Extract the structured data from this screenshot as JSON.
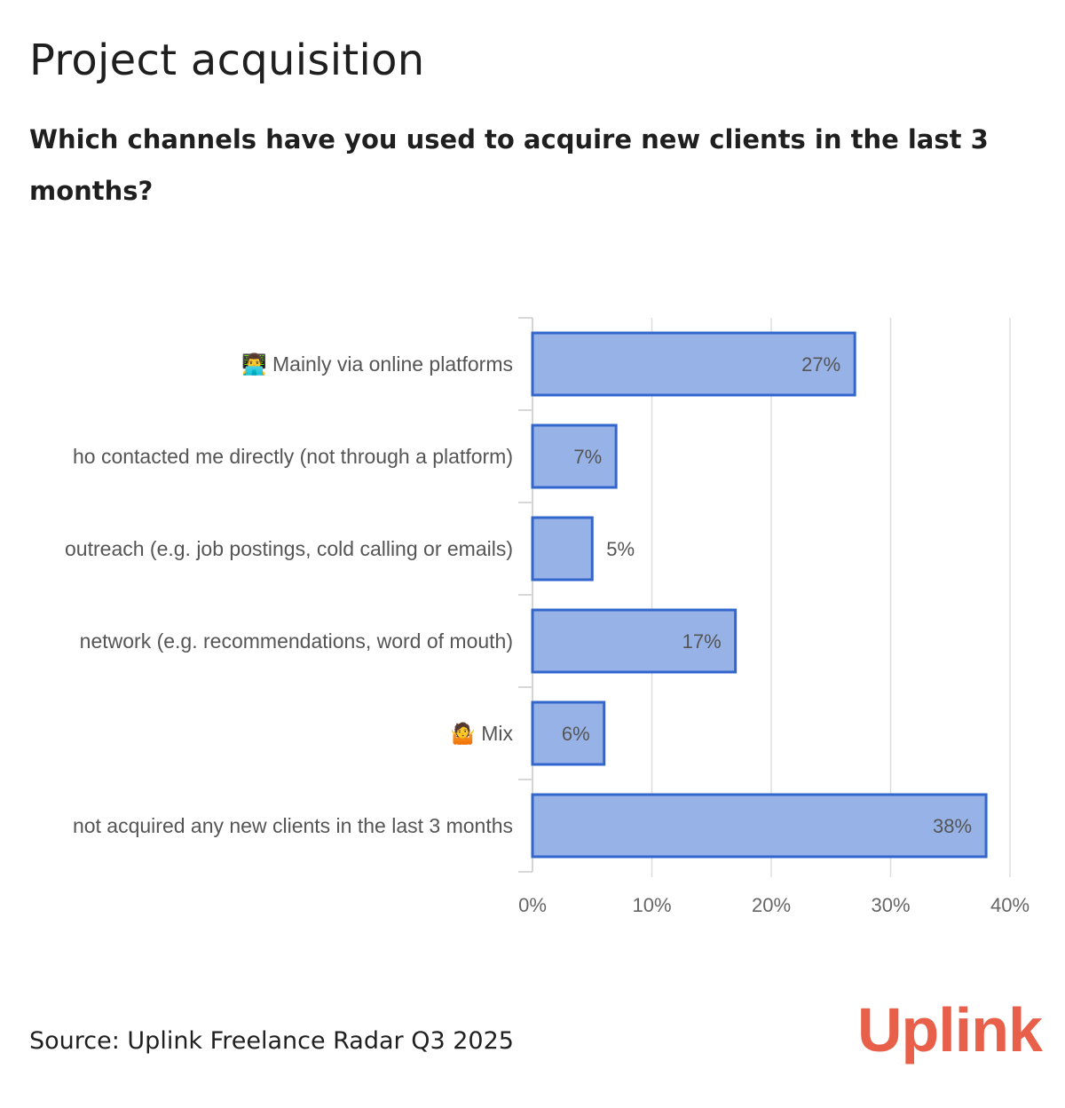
{
  "title": "Project acquisition",
  "subtitle": "Which channels have you used to acquire new clients in the last 3 months?",
  "source": "Source: Uplink Freelance Radar Q3 2025",
  "logo_text": "Uplink",
  "colors": {
    "bar_fill": "#97b2e6",
    "bar_stroke": "#3366cc",
    "grid": "#dddddd",
    "brand": "#e8604a"
  },
  "chart_data": {
    "type": "bar",
    "orientation": "horizontal",
    "title": "Project acquisition",
    "subtitle": "Which channels have you used to acquire new clients in the last 3 months?",
    "categories": [
      "👨‍💻 Mainly via online platforms",
      "ho contacted me directly (not through a platform)",
      "outreach (e.g. job postings, cold calling or emails)",
      "network (e.g. recommendations, word of mouth)",
      "🤷 Mix",
      "not acquired any new clients in the last 3 months"
    ],
    "values": [
      27,
      7,
      5,
      17,
      6,
      38
    ],
    "value_labels": [
      "27%",
      "7%",
      "5%",
      "17%",
      "6%",
      "38%"
    ],
    "xlim": [
      0,
      40
    ],
    "ticks": [
      0,
      10,
      20,
      30,
      40
    ],
    "tick_labels": [
      "0%",
      "10%",
      "20%",
      "30%",
      "40%"
    ],
    "xlabel": "",
    "ylabel": "",
    "grid": true,
    "legend": "none"
  }
}
